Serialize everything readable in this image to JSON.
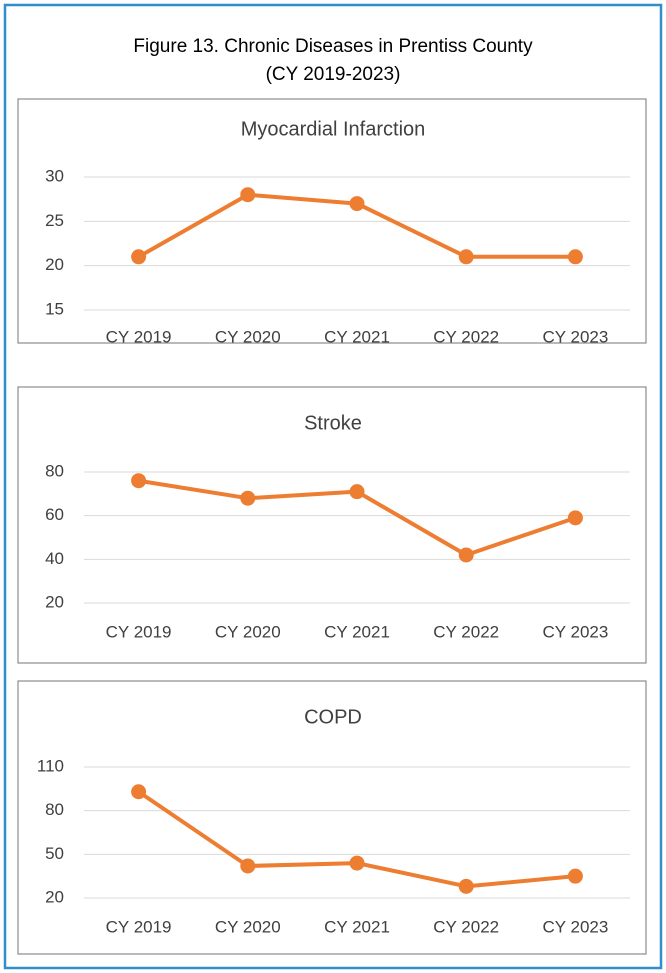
{
  "title": "Figure 13. Chronic Diseases in Prentiss County",
  "subtitle": "(CY 2019-2023)",
  "chart_data": [
    {
      "type": "line",
      "title": "Myocardial Infarction",
      "categories": [
        "CY 2019",
        "CY 2020",
        "CY 2021",
        "CY 2022",
        "CY 2023"
      ],
      "values": [
        21,
        28,
        27,
        21,
        21
      ],
      "color": "#ed7d31",
      "ylim": [
        15,
        30
      ],
      "yticks": [
        15,
        20,
        25,
        30
      ],
      "grid": true
    },
    {
      "type": "line",
      "title": "Stroke",
      "categories": [
        "CY 2019",
        "CY 2020",
        "CY 2021",
        "CY 2022",
        "CY 2023"
      ],
      "values": [
        76,
        68,
        71,
        42,
        59
      ],
      "color": "#ed7d31",
      "ylim": [
        20,
        80
      ],
      "yticks": [
        20,
        40,
        60,
        80
      ],
      "grid": true
    },
    {
      "type": "line",
      "title": "COPD",
      "categories": [
        "CY 2019",
        "CY 2020",
        "CY 2021",
        "CY 2022",
        "CY 2023"
      ],
      "values": [
        93,
        42,
        44,
        28,
        35
      ],
      "color": "#ed7d31",
      "ylim": [
        20,
        110
      ],
      "yticks": [
        20,
        50,
        80,
        110
      ],
      "grid": true
    }
  ]
}
